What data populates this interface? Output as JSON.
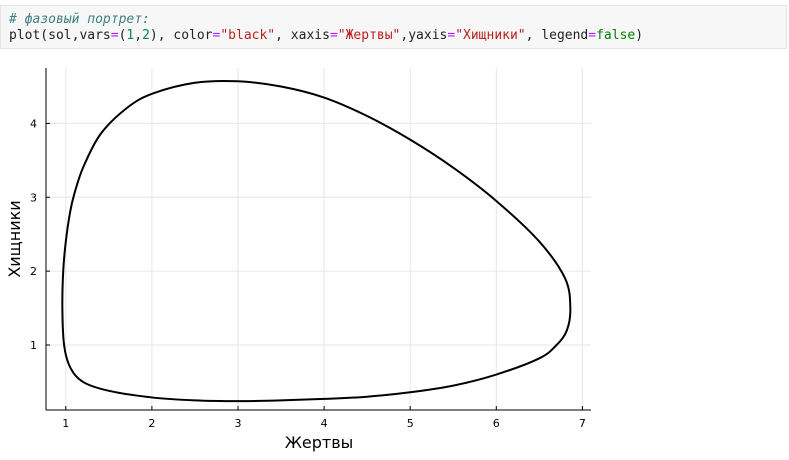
{
  "code": {
    "comment": "# фазовый портрет:",
    "tokens": {
      "fn": "plot(sol,vars",
      "eq1": "=",
      "open": "(",
      "n1": "1",
      "comma1": ",",
      "n2": "2",
      "close": "), color",
      "eq2": "=",
      "s_color": "\"black\"",
      "mid1": ", xaxis",
      "eq3": "=",
      "s_x": "\"Жертвы\"",
      "mid2": ",yaxis",
      "eq4": "=",
      "s_y": "\"Хищники\"",
      "mid3": ", legend",
      "eq5": "=",
      "kw_false": "false",
      "end": ")"
    }
  },
  "chart_data": {
    "type": "line",
    "xlabel": "Жертвы",
    "ylabel": "Хищники",
    "xlim": [
      0.77,
      7.1
    ],
    "ylim": [
      0.12,
      4.75
    ],
    "xticks": [
      1,
      2,
      3,
      4,
      5,
      6,
      7
    ],
    "yticks": [
      1,
      2,
      3,
      4
    ],
    "grid": true,
    "legend": false,
    "color": "#000000",
    "series": [
      {
        "x": [
          3.0,
          3.5,
          4.0,
          4.5,
          5.0,
          5.5,
          6.0,
          6.5,
          6.8,
          6.86,
          6.82,
          6.7,
          6.5,
          6.0,
          5.5,
          5.0,
          4.5,
          4.0,
          3.5,
          3.0,
          2.5,
          2.0,
          1.5,
          1.2,
          1.05,
          0.98,
          0.96,
          0.97,
          1.0,
          1.05,
          1.1,
          1.2,
          1.4,
          1.7,
          2.0,
          2.5,
          3.0
        ],
        "y": [
          4.57,
          4.5,
          4.35,
          4.1,
          3.78,
          3.4,
          2.95,
          2.4,
          1.9,
          1.5,
          1.2,
          1.0,
          0.82,
          0.6,
          0.45,
          0.36,
          0.3,
          0.27,
          0.25,
          0.24,
          0.25,
          0.29,
          0.38,
          0.5,
          0.7,
          1.0,
          1.5,
          2.0,
          2.4,
          2.8,
          3.05,
          3.4,
          3.85,
          4.2,
          4.4,
          4.55,
          4.57
        ]
      }
    ]
  }
}
